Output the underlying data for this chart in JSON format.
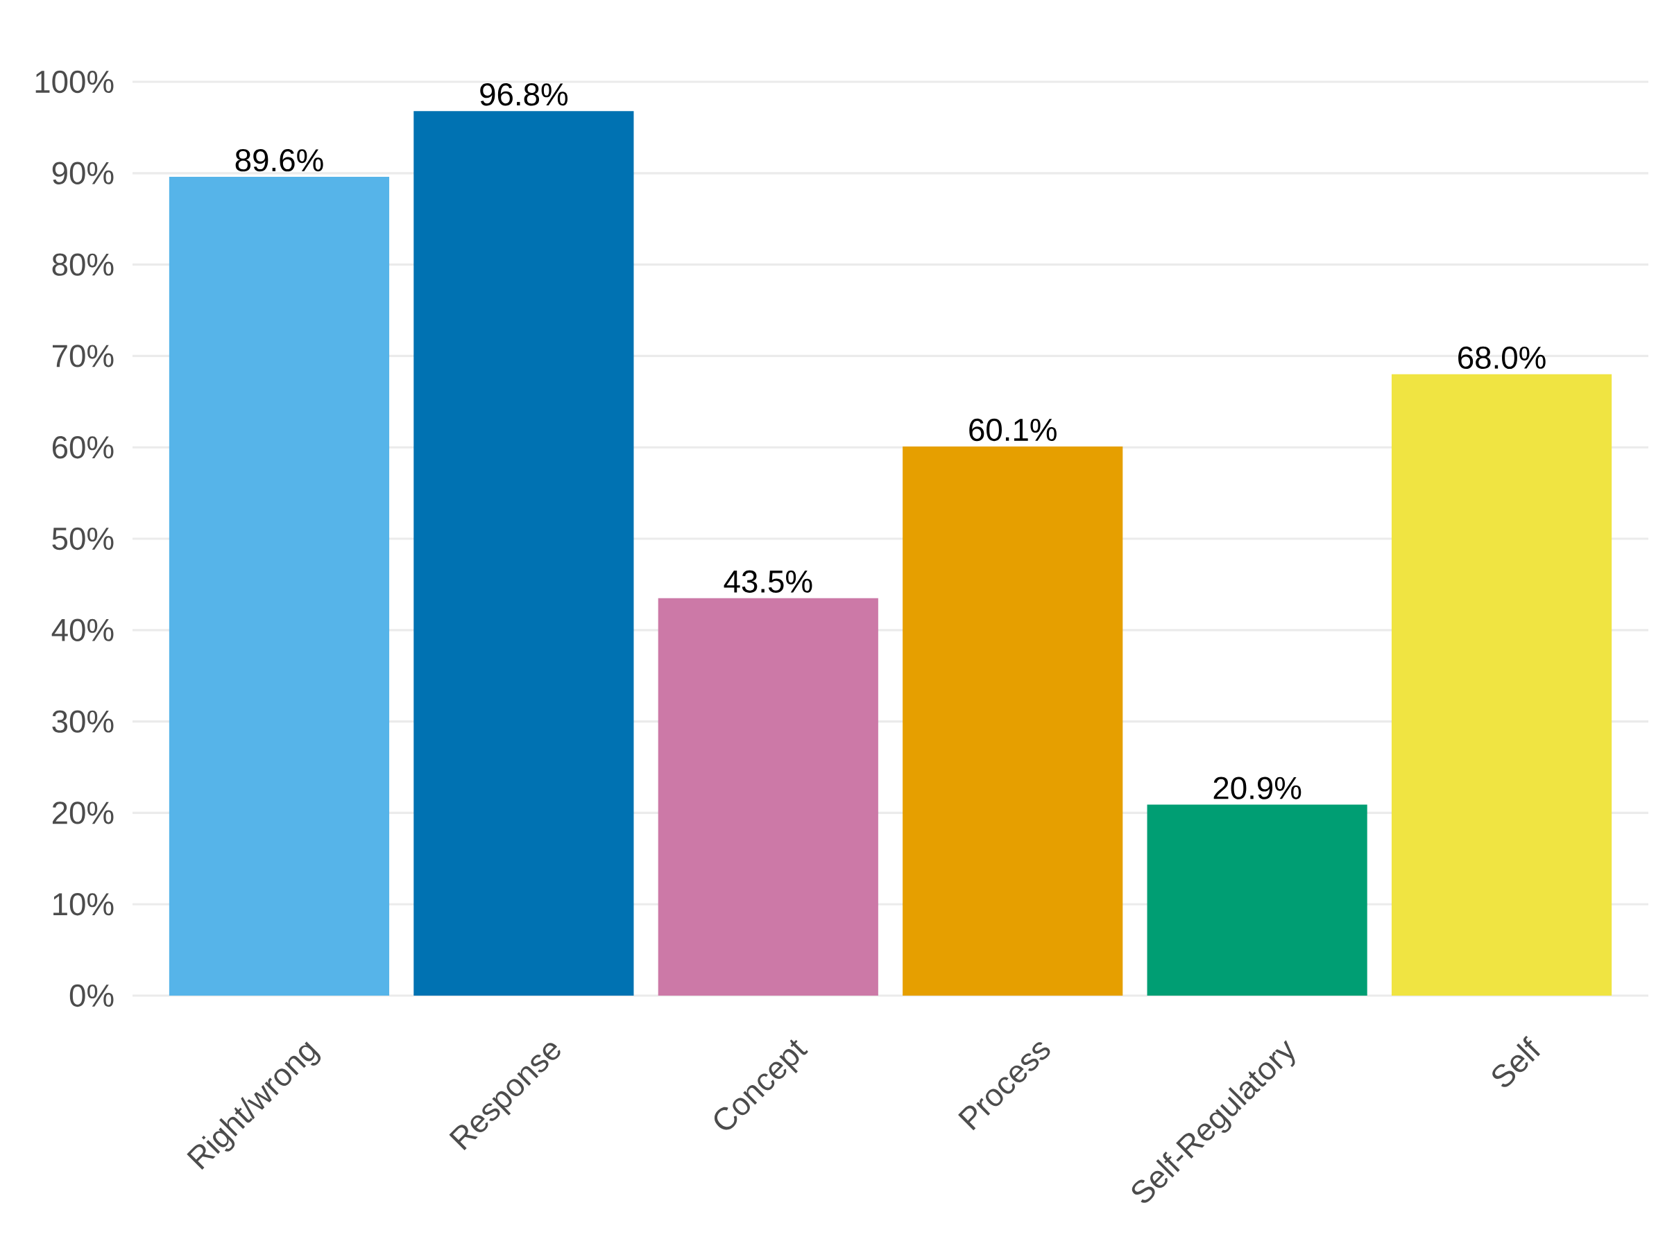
{
  "chart_data": {
    "type": "bar",
    "categories": [
      "Right/wrong",
      "Response",
      "Concept",
      "Process",
      "Self-Regulatory",
      "Self"
    ],
    "values": [
      89.6,
      96.8,
      43.5,
      60.1,
      20.9,
      68.0
    ],
    "value_labels": [
      "89.6%",
      "96.8%",
      "43.5%",
      "60.1%",
      "20.9%",
      "68.0%"
    ],
    "colors": [
      "#56b4e9",
      "#0072b2",
      "#cc79a7",
      "#e69f00",
      "#009e73",
      "#f0e442"
    ],
    "ylim": [
      0,
      100
    ],
    "yticks": [
      {
        "value": 0,
        "label": "0%"
      },
      {
        "value": 10,
        "label": "10%"
      },
      {
        "value": 20,
        "label": "20%"
      },
      {
        "value": 30,
        "label": "30%"
      },
      {
        "value": 40,
        "label": "40%"
      },
      {
        "value": 50,
        "label": "50%"
      },
      {
        "value": 60,
        "label": "60%"
      },
      {
        "value": 70,
        "label": "70%"
      },
      {
        "value": 80,
        "label": "80%"
      },
      {
        "value": 90,
        "label": "90%"
      },
      {
        "value": 100,
        "label": "100%"
      }
    ],
    "grid": "y"
  }
}
